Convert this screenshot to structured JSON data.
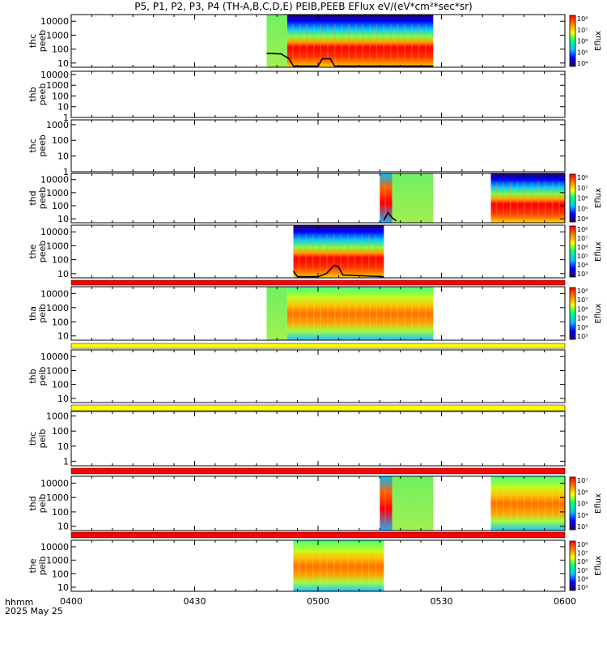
{
  "chart_data": {
    "type": "heatmap",
    "title": "P5, P1, P2, P3, P4 (TH-A,B,C,D,E) PEIB,PEEB EFlux eV/(eV*cm²*sec*sr)",
    "x_tick_labels": [
      "0400",
      "0430",
      "0500",
      "0530",
      "0600"
    ],
    "x_range_minutes": [
      240,
      360
    ],
    "x_footer": {
      "label": "hhmm",
      "date": "2025 May 25"
    },
    "panels": [
      {
        "name": "thc peeb",
        "ylabel": [
          "thc",
          "peeb"
        ],
        "y_ticks": [
          "10000",
          "1000",
          "100",
          "10"
        ],
        "ylim": [
          5,
          30000
        ],
        "y_scale": "log",
        "colorbar": {
          "label": "Eflux",
          "ticks": [
            "10⁸",
            "10⁷",
            "10⁶",
            "10⁵",
            "10⁴"
          ]
        },
        "data_segments": [
          [
            287.5,
            292.5,
            "uniform"
          ],
          [
            292.5,
            328,
            "electron"
          ]
        ],
        "scpot_curve": [
          [
            287.5,
            50
          ],
          [
            291,
            45
          ],
          [
            293,
            20
          ],
          [
            294,
            6
          ],
          [
            300,
            6
          ],
          [
            301,
            20
          ],
          [
            303,
            20
          ],
          [
            304,
            6
          ],
          [
            328,
            6
          ]
        ]
      },
      {
        "name": "thb peeb",
        "ylabel": [
          "thb",
          "peeb"
        ],
        "y_ticks": [
          "10000",
          "1000",
          "100",
          "10",
          "1"
        ],
        "ylim": [
          1,
          20000
        ],
        "y_scale": "log",
        "colorbar": null,
        "data_segments": []
      },
      {
        "name": "thc peeb",
        "ylabel": [
          "thc",
          "peeb"
        ],
        "y_ticks": [
          "1000",
          "100",
          "10",
          "1"
        ],
        "ylim": [
          1,
          2000
        ],
        "y_scale": "log",
        "colorbar": null,
        "data_segments": []
      },
      {
        "name": "thd peeb",
        "ylabel": [
          "thd",
          "peeb"
        ],
        "y_ticks": [
          "10000",
          "1000",
          "100",
          "10"
        ],
        "ylim": [
          5,
          30000
        ],
        "y_scale": "log",
        "colorbar": {
          "label": "Eflux",
          "ticks": [
            "10⁸",
            "10⁷",
            "10⁶",
            "10⁵",
            "10⁴"
          ]
        },
        "data_segments": [
          [
            315,
            318,
            "mixed"
          ],
          [
            318,
            328,
            "uniform"
          ],
          [
            342,
            360,
            "electron"
          ]
        ],
        "scpot_curve": [
          [
            316,
            8
          ],
          [
            317,
            30
          ],
          [
            318,
            12
          ],
          [
            319,
            7
          ]
        ]
      },
      {
        "name": "the peeb",
        "ylabel": [
          "the",
          "peeb"
        ],
        "y_ticks": [
          "10000",
          "1000",
          "100",
          "10"
        ],
        "ylim": [
          5,
          30000
        ],
        "y_scale": "log",
        "colorbar": {
          "label": "Eflux",
          "ticks": [
            "10⁸",
            "10⁷",
            "10⁶",
            "10⁵",
            "10⁴",
            "10³"
          ]
        },
        "data_segments": [
          [
            294,
            316,
            "electron"
          ]
        ],
        "scpot_curve": [
          [
            294,
            15
          ],
          [
            295,
            6
          ],
          [
            300,
            6
          ],
          [
            302,
            10
          ],
          [
            304,
            40
          ],
          [
            305,
            30
          ],
          [
            306,
            8
          ],
          [
            316,
            6
          ]
        ]
      },
      {
        "name": "tha peib",
        "ylabel": [
          "tha",
          "peib"
        ],
        "y_ticks": [
          "10000",
          "1000",
          "100",
          "10"
        ],
        "ylim": [
          5,
          30000
        ],
        "y_scale": "log",
        "colorbar": {
          "label": "Eflux",
          "ticks": [
            "10⁸",
            "10⁷",
            "10⁶",
            "10⁵",
            "10⁴",
            "10³"
          ]
        },
        "data_segments": [
          [
            287.5,
            292.5,
            "uniform"
          ],
          [
            292.5,
            328,
            "ion"
          ]
        ]
      },
      {
        "name": "thb peib",
        "ylabel": [
          "thb",
          "peib"
        ],
        "y_ticks": [
          "10000",
          "1000",
          "100",
          "10"
        ],
        "ylim": [
          5,
          30000
        ],
        "y_scale": "log",
        "colorbar": null,
        "data_segments": []
      },
      {
        "name": "thc peib",
        "ylabel": [
          "thc",
          "peib"
        ],
        "y_ticks": [
          "1000",
          "100",
          "10",
          "1"
        ],
        "ylim": [
          0.5,
          2000
        ],
        "y_scale": "log",
        "colorbar": null,
        "data_segments": []
      },
      {
        "name": "thd peib",
        "ylabel": [
          "thd",
          "peib"
        ],
        "y_ticks": [
          "10000",
          "1000",
          "100",
          "10"
        ],
        "ylim": [
          5,
          30000
        ],
        "y_scale": "log",
        "colorbar": {
          "label": "Eflux",
          "ticks": [
            "10⁷",
            "10⁶",
            "10⁵",
            "10⁴",
            "10³"
          ]
        },
        "data_segments": [
          [
            315,
            318,
            "mixed"
          ],
          [
            318,
            328,
            "uniform"
          ],
          [
            342,
            360,
            "ion"
          ]
        ]
      },
      {
        "name": "the peib",
        "ylabel": [
          "the",
          "peib"
        ],
        "y_ticks": [
          "10000",
          "1000",
          "100",
          "10"
        ],
        "ylim": [
          5,
          30000
        ],
        "y_scale": "log",
        "colorbar": {
          "label": "Eflux",
          "ticks": [
            "10⁸",
            "10⁷",
            "10⁶",
            "10⁵",
            "10⁴",
            "10³"
          ]
        },
        "data_segments": [
          [
            294,
            316,
            "ion"
          ]
        ]
      }
    ],
    "status_bars": [
      {
        "after_panel": 4,
        "color": "#ff0000"
      },
      {
        "after_panel": 5,
        "color": "#ffff00"
      },
      {
        "after_panel": 6,
        "color": "#ffff00"
      },
      {
        "after_panel": 7,
        "color": "#ff0000"
      },
      {
        "after_panel": 8,
        "color": "#ff0000"
      }
    ],
    "colormap": [
      "#2a0055",
      "#0000ff",
      "#00c8ff",
      "#00ff80",
      "#ffff00",
      "#ff8000",
      "#ff0000"
    ]
  }
}
